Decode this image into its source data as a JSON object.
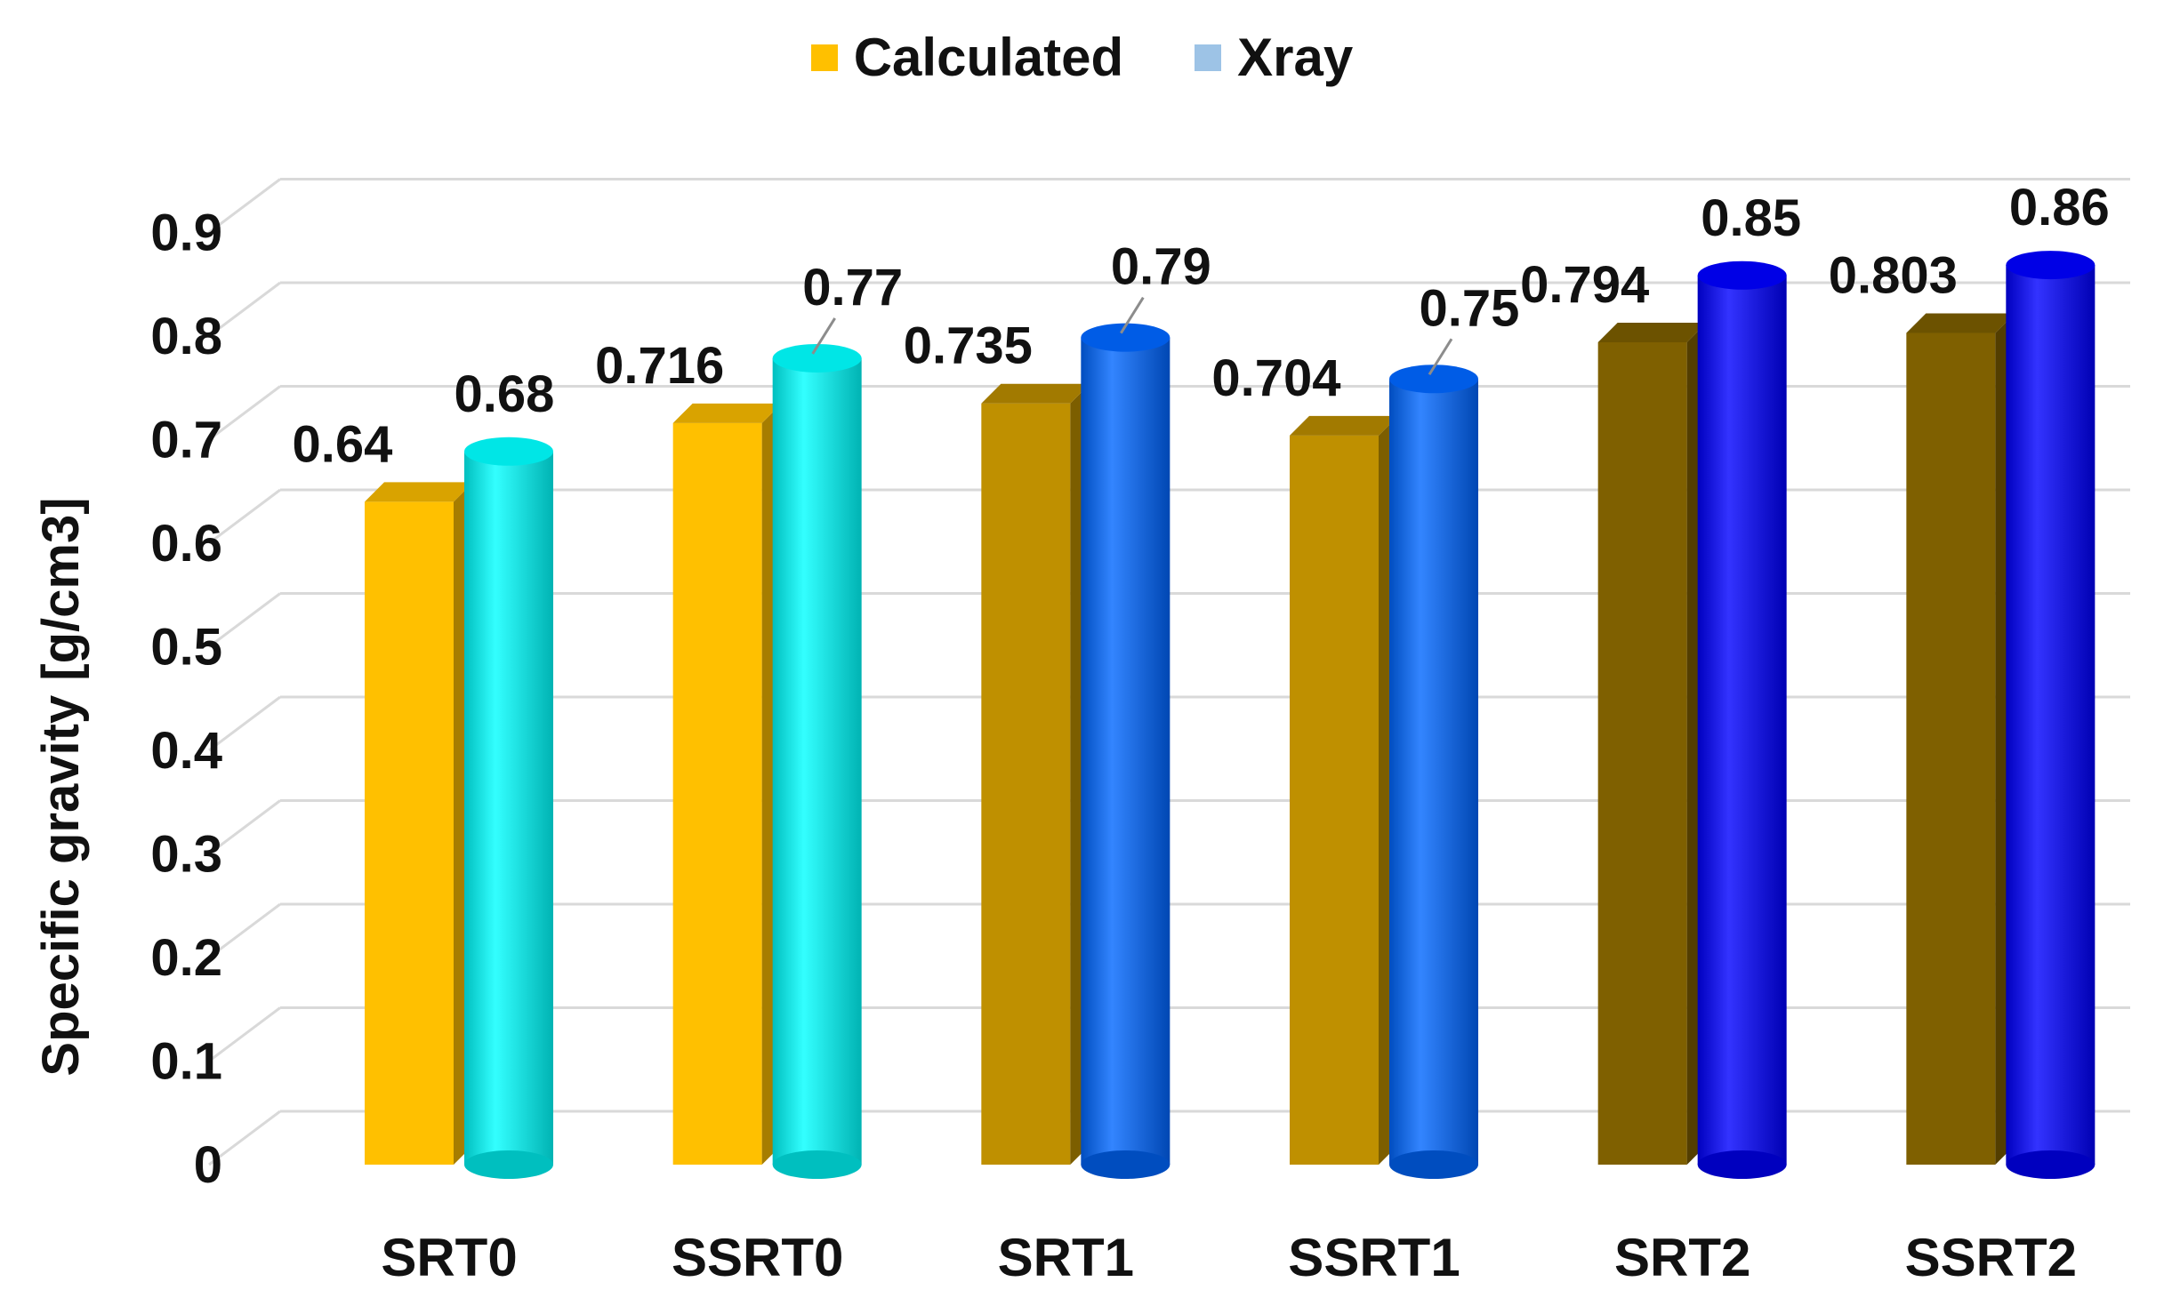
{
  "chart_data": {
    "type": "bar",
    "title": "",
    "xlabel": "",
    "ylabel": "Specific gravity [g/cm3]",
    "ylim": [
      0,
      0.9
    ],
    "yticks": [
      "0",
      "0.1",
      "0.2",
      "0.3",
      "0.4",
      "0.5",
      "0.6",
      "0.7",
      "0.8",
      "0.9"
    ],
    "categories": [
      "SRT0",
      "SSRT0",
      "SRT1",
      "SSRT1",
      "SRT2",
      "SSRT2"
    ],
    "series": [
      {
        "name": "Calculated",
        "values": [
          0.64,
          0.716,
          0.735,
          0.704,
          0.794,
          0.803
        ],
        "labels": [
          "0.64",
          "0.716",
          "0.735",
          "0.704",
          "0.794",
          "0.803"
        ],
        "colors": [
          "#FFC000",
          "#FFC000",
          "#BF9000",
          "#BF9000",
          "#7F6000",
          "#7F6000"
        ],
        "legend_color": "#FFC000"
      },
      {
        "name": "Xray",
        "values": [
          0.68,
          0.77,
          0.79,
          0.75,
          0.85,
          0.86
        ],
        "labels": [
          "0.68",
          "0.77",
          "0.79",
          "0.75",
          "0.85",
          "0.86"
        ],
        "colors": [
          "#00FFFF",
          "#00FFFF",
          "#0066FF",
          "#0066FF",
          "#0000FF",
          "#0000FF"
        ],
        "legend_color": "#9DC3E6"
      }
    ],
    "legend_position": "top-center",
    "grid": true
  }
}
